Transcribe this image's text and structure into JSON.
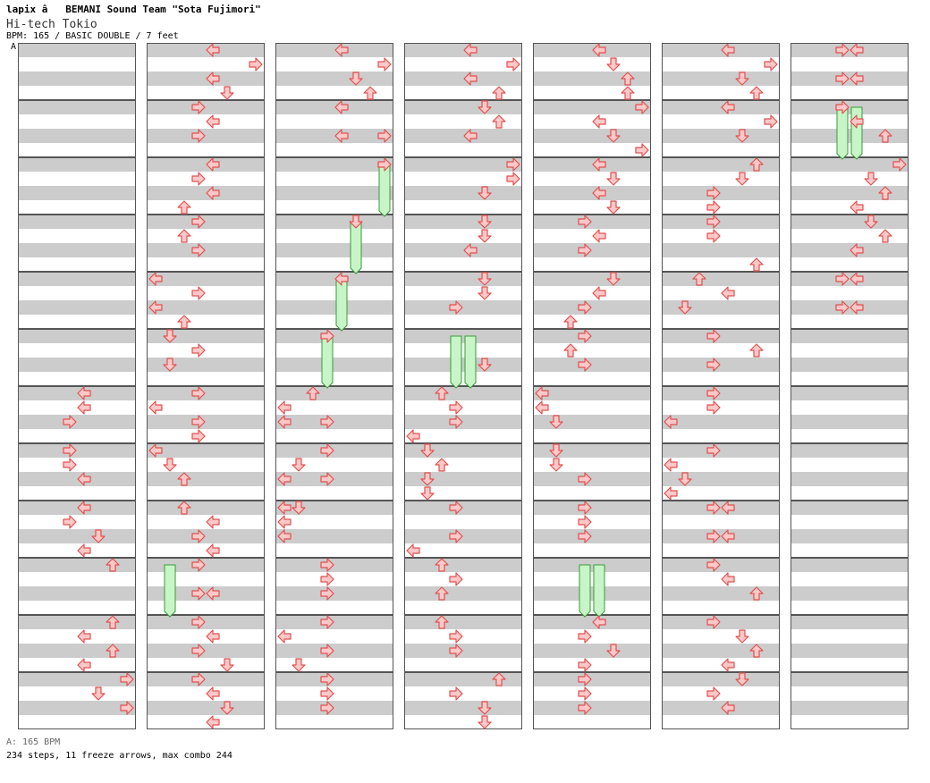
{
  "header": {
    "artist": "lapix â   BEMANI Sound Team \"Sota Fujimori\"",
    "title": "Hi-tech Tokio",
    "info": "BPM: 165 / BASIC DOUBLE / 7 feet",
    "bpm_marker": "A"
  },
  "footer": {
    "bpm_note": "A: 165 BPM",
    "stats": "234 steps, 11 freeze arrows, max combo 244"
  },
  "colors": {
    "arrow_fill": "#ffc8c8",
    "arrow_stroke": "#e05050",
    "freeze_fill": "#c8f5c8",
    "freeze_stroke": "#3a9a3a",
    "stripe_dark": "#cccccc",
    "stripe_light": "#ffffff",
    "border": "#555555"
  },
  "chart_data": {
    "type": "step-chart",
    "columns": 7,
    "measures_per_column": 12,
    "rows_per_measure": 4,
    "panels_per_column": 8,
    "panel_order": [
      "left",
      "down",
      "up",
      "right",
      "left",
      "down",
      "up",
      "right"
    ],
    "arrows": [
      {
        "m": 6,
        "r": 0,
        "p": 4
      },
      {
        "m": 6,
        "r": 1,
        "p": 4
      },
      {
        "m": 6,
        "r": 2,
        "p": 3
      },
      {
        "m": 7,
        "r": 0,
        "p": 3
      },
      {
        "m": 7,
        "r": 1,
        "p": 3
      },
      {
        "m": 7,
        "r": 2,
        "p": 4
      },
      {
        "m": 8,
        "r": 0,
        "p": 4
      },
      {
        "m": 8,
        "r": 1,
        "p": 3
      },
      {
        "m": 8,
        "r": 2,
        "p": 5
      },
      {
        "m": 8,
        "r": 3,
        "p": 4
      },
      {
        "m": 9,
        "r": 0,
        "p": 6
      },
      {
        "m": 10,
        "r": 0,
        "p": 6
      },
      {
        "m": 10,
        "r": 1,
        "p": 4
      },
      {
        "m": 10,
        "r": 2,
        "p": 6
      },
      {
        "m": 10,
        "r": 3,
        "p": 4
      },
      {
        "m": 11,
        "r": 0,
        "p": 7
      },
      {
        "m": 11,
        "r": 1,
        "p": 5
      },
      {
        "m": 11,
        "r": 2,
        "p": 7
      },
      {
        "m": 12,
        "r": 0,
        "p": 4
      },
      {
        "m": 12,
        "r": 1,
        "p": 7
      },
      {
        "m": 12,
        "r": 2,
        "p": 4
      },
      {
        "m": 12,
        "r": 3,
        "p": 5
      },
      {
        "m": 13,
        "r": 0,
        "p": 3
      },
      {
        "m": 13,
        "r": 1,
        "p": 4
      },
      {
        "m": 13,
        "r": 2,
        "p": 3
      },
      {
        "m": 14,
        "r": 0,
        "p": 4
      },
      {
        "m": 14,
        "r": 1,
        "p": 3
      },
      {
        "m": 14,
        "r": 2,
        "p": 4
      },
      {
        "m": 14,
        "r": 3,
        "p": 2
      },
      {
        "m": 15,
        "r": 0,
        "p": 3
      },
      {
        "m": 15,
        "r": 1,
        "p": 2
      },
      {
        "m": 15,
        "r": 2,
        "p": 3
      },
      {
        "m": 16,
        "r": 0,
        "p": 0
      },
      {
        "m": 16,
        "r": 1,
        "p": 3
      },
      {
        "m": 16,
        "r": 2,
        "p": 0
      },
      {
        "m": 16,
        "r": 3,
        "p": 2
      },
      {
        "m": 17,
        "r": 0,
        "p": 1
      },
      {
        "m": 17,
        "r": 1,
        "p": 3
      },
      {
        "m": 17,
        "r": 2,
        "p": 1
      },
      {
        "m": 18,
        "r": 0,
        "p": 3
      },
      {
        "m": 18,
        "r": 1,
        "p": 0
      },
      {
        "m": 18,
        "r": 2,
        "p": 3
      },
      {
        "m": 18,
        "r": 3,
        "p": 3
      },
      {
        "m": 19,
        "r": 0,
        "p": 0
      },
      {
        "m": 19,
        "r": 1,
        "p": 1
      },
      {
        "m": 19,
        "r": 2,
        "p": 2
      },
      {
        "m": 20,
        "r": 0,
        "p": 2
      },
      {
        "m": 20,
        "r": 1,
        "p": 4
      },
      {
        "m": 20,
        "r": 2,
        "p": 3
      },
      {
        "m": 20,
        "r": 3,
        "p": 4
      },
      {
        "m": 21,
        "r": 0,
        "p": 3
      },
      {
        "m": 21,
        "r": 2,
        "p": 3
      },
      {
        "m": 21,
        "r": 2,
        "p": 4
      },
      {
        "m": 22,
        "r": 0,
        "p": 3
      },
      {
        "m": 22,
        "r": 1,
        "p": 4
      },
      {
        "m": 22,
        "r": 2,
        "p": 3
      },
      {
        "m": 22,
        "r": 3,
        "p": 5
      },
      {
        "m": 23,
        "r": 0,
        "p": 3
      },
      {
        "m": 23,
        "r": 1,
        "p": 4
      },
      {
        "m": 23,
        "r": 2,
        "p": 5
      },
      {
        "m": 23,
        "r": 3,
        "p": 4
      },
      {
        "m": 24,
        "r": 0,
        "p": 4
      },
      {
        "m": 24,
        "r": 1,
        "p": 7
      },
      {
        "m": 24,
        "r": 2,
        "p": 5
      },
      {
        "m": 24,
        "r": 3,
        "p": 6
      },
      {
        "m": 25,
        "r": 0,
        "p": 4
      },
      {
        "m": 25,
        "r": 2,
        "p": 4
      },
      {
        "m": 25,
        "r": 2,
        "p": 7
      },
      {
        "m": 26,
        "r": 0,
        "p": 7
      },
      {
        "m": 27,
        "r": 0,
        "p": 5
      },
      {
        "m": 28,
        "r": 0,
        "p": 4
      },
      {
        "m": 29,
        "r": 0,
        "p": 3
      },
      {
        "m": 30,
        "r": 0,
        "p": 2
      },
      {
        "m": 30,
        "r": 1,
        "p": 0
      },
      {
        "m": 30,
        "r": 2,
        "p": 0
      },
      {
        "m": 30,
        "r": 2,
        "p": 3
      },
      {
        "m": 31,
        "r": 0,
        "p": 3
      },
      {
        "m": 31,
        "r": 1,
        "p": 1
      },
      {
        "m": 31,
        "r": 2,
        "p": 0
      },
      {
        "m": 31,
        "r": 2,
        "p": 3
      },
      {
        "m": 32,
        "r": 0,
        "p": 0
      },
      {
        "m": 32,
        "r": 0,
        "p": 1
      },
      {
        "m": 32,
        "r": 1,
        "p": 0
      },
      {
        "m": 32,
        "r": 2,
        "p": 0
      },
      {
        "m": 33,
        "r": 0,
        "p": 3
      },
      {
        "m": 33,
        "r": 1,
        "p": 3
      },
      {
        "m": 33,
        "r": 2,
        "p": 3
      },
      {
        "m": 34,
        "r": 0,
        "p": 3
      },
      {
        "m": 34,
        "r": 1,
        "p": 0
      },
      {
        "m": 34,
        "r": 2,
        "p": 3
      },
      {
        "m": 34,
        "r": 3,
        "p": 1
      },
      {
        "m": 35,
        "r": 0,
        "p": 3
      },
      {
        "m": 35,
        "r": 1,
        "p": 3
      },
      {
        "m": 35,
        "r": 2,
        "p": 3
      },
      {
        "m": 36,
        "r": 0,
        "p": 4
      },
      {
        "m": 36,
        "r": 1,
        "p": 7
      },
      {
        "m": 36,
        "r": 2,
        "p": 4
      },
      {
        "m": 36,
        "r": 3,
        "p": 6
      },
      {
        "m": 37,
        "r": 0,
        "p": 5
      },
      {
        "m": 37,
        "r": 1,
        "p": 6
      },
      {
        "m": 37,
        "r": 2,
        "p": 4
      },
      {
        "m": 38,
        "r": 0,
        "p": 7
      },
      {
        "m": 38,
        "r": 1,
        "p": 7
      },
      {
        "m": 38,
        "r": 2,
        "p": 5
      },
      {
        "m": 39,
        "r": 0,
        "p": 5
      },
      {
        "m": 39,
        "r": 1,
        "p": 5
      },
      {
        "m": 39,
        "r": 2,
        "p": 4
      },
      {
        "m": 40,
        "r": 0,
        "p": 5
      },
      {
        "m": 40,
        "r": 1,
        "p": 5
      },
      {
        "m": 40,
        "r": 2,
        "p": 3
      },
      {
        "m": 41,
        "r": 2,
        "p": 5
      },
      {
        "m": 42,
        "r": 0,
        "p": 2
      },
      {
        "m": 42,
        "r": 1,
        "p": 3
      },
      {
        "m": 42,
        "r": 2,
        "p": 3
      },
      {
        "m": 42,
        "r": 3,
        "p": 0
      },
      {
        "m": 43,
        "r": 0,
        "p": 1
      },
      {
        "m": 43,
        "r": 1,
        "p": 2
      },
      {
        "m": 43,
        "r": 2,
        "p": 1
      },
      {
        "m": 43,
        "r": 3,
        "p": 1
      },
      {
        "m": 44,
        "r": 0,
        "p": 3
      },
      {
        "m": 44,
        "r": 2,
        "p": 3
      },
      {
        "m": 44,
        "r": 3,
        "p": 0
      },
      {
        "m": 45,
        "r": 0,
        "p": 2
      },
      {
        "m": 45,
        "r": 1,
        "p": 3
      },
      {
        "m": 45,
        "r": 2,
        "p": 2
      },
      {
        "m": 46,
        "r": 0,
        "p": 2
      },
      {
        "m": 46,
        "r": 1,
        "p": 3
      },
      {
        "m": 46,
        "r": 2,
        "p": 3
      },
      {
        "m": 47,
        "r": 0,
        "p": 6
      },
      {
        "m": 47,
        "r": 1,
        "p": 3
      },
      {
        "m": 47,
        "r": 2,
        "p": 5
      },
      {
        "m": 47,
        "r": 3,
        "p": 5
      },
      {
        "m": 48,
        "r": 0,
        "p": 4
      },
      {
        "m": 48,
        "r": 1,
        "p": 5
      },
      {
        "m": 48,
        "r": 2,
        "p": 6
      },
      {
        "m": 48,
        "r": 3,
        "p": 6
      },
      {
        "m": 49,
        "r": 0,
        "p": 7
      },
      {
        "m": 49,
        "r": 1,
        "p": 4
      },
      {
        "m": 49,
        "r": 2,
        "p": 5
      },
      {
        "m": 49,
        "r": 3,
        "p": 7
      },
      {
        "m": 50,
        "r": 0,
        "p": 4
      },
      {
        "m": 50,
        "r": 1,
        "p": 5
      },
      {
        "m": 50,
        "r": 2,
        "p": 4
      },
      {
        "m": 50,
        "r": 3,
        "p": 5
      },
      {
        "m": 51,
        "r": 0,
        "p": 3
      },
      {
        "m": 51,
        "r": 1,
        "p": 4
      },
      {
        "m": 51,
        "r": 2,
        "p": 3
      },
      {
        "m": 52,
        "r": 0,
        "p": 5
      },
      {
        "m": 52,
        "r": 1,
        "p": 4
      },
      {
        "m": 52,
        "r": 2,
        "p": 3
      },
      {
        "m": 52,
        "r": 3,
        "p": 2
      },
      {
        "m": 53,
        "r": 0,
        "p": 3
      },
      {
        "m": 53,
        "r": 1,
        "p": 2
      },
      {
        "m": 53,
        "r": 2,
        "p": 3
      },
      {
        "m": 54,
        "r": 0,
        "p": 0
      },
      {
        "m": 54,
        "r": 1,
        "p": 0
      },
      {
        "m": 54,
        "r": 2,
        "p": 1
      },
      {
        "m": 55,
        "r": 0,
        "p": 1
      },
      {
        "m": 55,
        "r": 1,
        "p": 1
      },
      {
        "m": 55,
        "r": 2,
        "p": 3
      },
      {
        "m": 56,
        "r": 0,
        "p": 3
      },
      {
        "m": 56,
        "r": 1,
        "p": 3
      },
      {
        "m": 56,
        "r": 2,
        "p": 3
      },
      {
        "m": 58,
        "r": 0,
        "p": 4
      },
      {
        "m": 58,
        "r": 1,
        "p": 3
      },
      {
        "m": 58,
        "r": 2,
        "p": 5
      },
      {
        "m": 58,
        "r": 3,
        "p": 3
      },
      {
        "m": 59,
        "r": 0,
        "p": 3
      },
      {
        "m": 59,
        "r": 1,
        "p": 3
      },
      {
        "m": 59,
        "r": 2,
        "p": 3
      },
      {
        "m": 60,
        "r": 0,
        "p": 4
      },
      {
        "m": 60,
        "r": 1,
        "p": 7
      },
      {
        "m": 60,
        "r": 2,
        "p": 5
      },
      {
        "m": 60,
        "r": 3,
        "p": 6
      },
      {
        "m": 61,
        "r": 0,
        "p": 4
      },
      {
        "m": 61,
        "r": 1,
        "p": 7
      },
      {
        "m": 61,
        "r": 2,
        "p": 5
      },
      {
        "m": 62,
        "r": 0,
        "p": 6
      },
      {
        "m": 62,
        "r": 1,
        "p": 5
      },
      {
        "m": 62,
        "r": 2,
        "p": 3
      },
      {
        "m": 62,
        "r": 3,
        "p": 3
      },
      {
        "m": 63,
        "r": 0,
        "p": 3
      },
      {
        "m": 63,
        "r": 1,
        "p": 3
      },
      {
        "m": 63,
        "r": 3,
        "p": 6
      },
      {
        "m": 64,
        "r": 0,
        "p": 2
      },
      {
        "m": 64,
        "r": 1,
        "p": 4
      },
      {
        "m": 64,
        "r": 2,
        "p": 1
      },
      {
        "m": 65,
        "r": 0,
        "p": 3
      },
      {
        "m": 65,
        "r": 1,
        "p": 6
      },
      {
        "m": 65,
        "r": 2,
        "p": 3
      },
      {
        "m": 66,
        "r": 0,
        "p": 3
      },
      {
        "m": 66,
        "r": 1,
        "p": 3
      },
      {
        "m": 66,
        "r": 2,
        "p": 0
      },
      {
        "m": 67,
        "r": 0,
        "p": 3
      },
      {
        "m": 67,
        "r": 1,
        "p": 0
      },
      {
        "m": 67,
        "r": 2,
        "p": 1
      },
      {
        "m": 67,
        "r": 3,
        "p": 0
      },
      {
        "m": 68,
        "r": 0,
        "p": 3
      },
      {
        "m": 68,
        "r": 0,
        "p": 4
      },
      {
        "m": 68,
        "r": 2,
        "p": 3
      },
      {
        "m": 68,
        "r": 2,
        "p": 4
      },
      {
        "m": 69,
        "r": 0,
        "p": 3
      },
      {
        "m": 69,
        "r": 1,
        "p": 4
      },
      {
        "m": 69,
        "r": 2,
        "p": 6
      },
      {
        "m": 70,
        "r": 0,
        "p": 3
      },
      {
        "m": 70,
        "r": 1,
        "p": 5
      },
      {
        "m": 70,
        "r": 2,
        "p": 6
      },
      {
        "m": 70,
        "r": 3,
        "p": 4
      },
      {
        "m": 71,
        "r": 0,
        "p": 5
      },
      {
        "m": 71,
        "r": 1,
        "p": 3
      },
      {
        "m": 71,
        "r": 2,
        "p": 4
      },
      {
        "m": 72,
        "r": 0,
        "p": 3
      },
      {
        "m": 72,
        "r": 0,
        "p": 4
      },
      {
        "m": 72,
        "r": 2,
        "p": 3
      },
      {
        "m": 72,
        "r": 2,
        "p": 4
      },
      {
        "m": 73,
        "r": 0,
        "p": 3
      },
      {
        "m": 73,
        "r": 1,
        "p": 4
      },
      {
        "m": 73,
        "r": 2,
        "p": 6
      },
      {
        "m": 74,
        "r": 0,
        "p": 7
      },
      {
        "m": 74,
        "r": 1,
        "p": 5
      },
      {
        "m": 74,
        "r": 2,
        "p": 6
      },
      {
        "m": 74,
        "r": 3,
        "p": 4
      },
      {
        "m": 75,
        "r": 0,
        "p": 5
      },
      {
        "m": 75,
        "r": 1,
        "p": 6
      },
      {
        "m": 75,
        "r": 2,
        "p": 4
      },
      {
        "m": 76,
        "r": 0,
        "p": 3
      },
      {
        "m": 76,
        "r": 0,
        "p": 4
      },
      {
        "m": 76,
        "r": 2,
        "p": 3
      },
      {
        "m": 76,
        "r": 2,
        "p": 4
      }
    ],
    "freezes": [
      {
        "m": 21,
        "r": 0,
        "p": 1,
        "end_m": 21,
        "end_r": 3
      },
      {
        "m": 26,
        "r": 0,
        "p": 7,
        "end_m": 26,
        "end_r": 3
      },
      {
        "m": 27,
        "r": 0,
        "p": 5,
        "end_m": 27,
        "end_r": 3
      },
      {
        "m": 28,
        "r": 0,
        "p": 4,
        "end_m": 28,
        "end_r": 3
      },
      {
        "m": 29,
        "r": 0,
        "p": 3,
        "end_m": 29,
        "end_r": 3
      },
      {
        "m": 41,
        "r": 0,
        "p": 3,
        "end_m": 41,
        "end_r": 3
      },
      {
        "m": 41,
        "r": 0,
        "p": 4,
        "end_m": 41,
        "end_r": 3
      },
      {
        "m": 57,
        "r": 0,
        "p": 3,
        "end_m": 57,
        "end_r": 3
      },
      {
        "m": 57,
        "r": 0,
        "p": 4,
        "end_m": 57,
        "end_r": 3
      },
      {
        "m": 73,
        "r": 0,
        "p": 3,
        "end_m": 73,
        "end_r": 3
      },
      {
        "m": 73,
        "r": 0,
        "p": 4,
        "end_m": 73,
        "end_r": 3
      }
    ]
  }
}
